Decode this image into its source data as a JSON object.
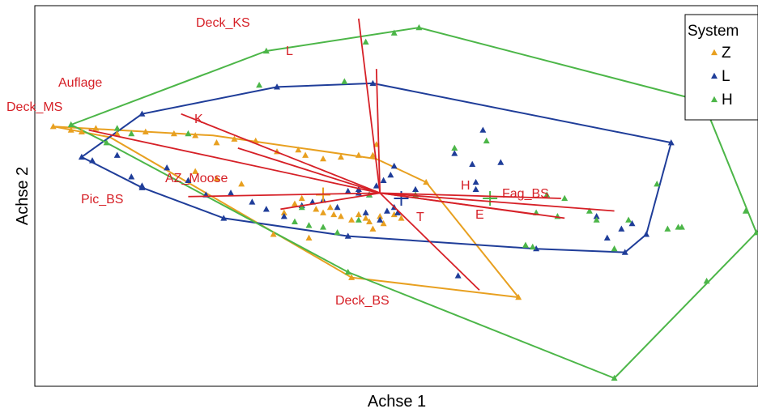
{
  "chart_data": {
    "type": "scatter",
    "subtype": "ordination-biplot",
    "xlabel": "Achse 1",
    "ylabel": "Achse 2",
    "ticks": "none",
    "grid": false,
    "legend": {
      "title": "System",
      "position": "top-right",
      "entries": [
        {
          "label": "Z",
          "color": "#e8a020"
        },
        {
          "label": "L",
          "color": "#1f3d99"
        },
        {
          "label": "H",
          "color": "#4cb648"
        }
      ]
    },
    "xlim": [
      -1.0,
      1.0
    ],
    "ylim": [
      -1.0,
      1.0
    ],
    "series": [
      {
        "name": "Z",
        "color": "#e8a020",
        "marker": "triangle",
        "hull": [
          [
            -0.98,
            0.4
          ],
          [
            -0.53,
            0.35
          ],
          [
            -0.07,
            0.22
          ],
          [
            0.07,
            0.09
          ],
          [
            0.33,
            -0.55
          ],
          [
            -0.14,
            -0.44
          ],
          [
            -0.82,
            0.34
          ]
        ],
        "centroid": [
          -0.22,
          0.02
        ],
        "points": [
          [
            -0.98,
            0.4
          ],
          [
            -0.93,
            0.38
          ],
          [
            -0.9,
            0.37
          ],
          [
            -0.86,
            0.39
          ],
          [
            -0.8,
            0.36
          ],
          [
            -0.72,
            0.37
          ],
          [
            -0.64,
            0.36
          ],
          [
            -0.58,
            0.35
          ],
          [
            -0.52,
            0.31
          ],
          [
            -0.47,
            0.33
          ],
          [
            -0.41,
            0.32
          ],
          [
            -0.35,
            0.26
          ],
          [
            -0.29,
            0.27
          ],
          [
            -0.27,
            0.24
          ],
          [
            -0.22,
            0.22
          ],
          [
            -0.17,
            0.23
          ],
          [
            -0.12,
            0.24
          ],
          [
            -0.08,
            0.24
          ],
          [
            -0.07,
            0.3
          ],
          [
            -0.2,
            -0.05
          ],
          [
            -0.22,
            -0.08
          ],
          [
            -0.19,
            -0.09
          ],
          [
            -0.17,
            -0.1
          ],
          [
            -0.14,
            -0.12
          ],
          [
            -0.12,
            -0.09
          ],
          [
            -0.1,
            -0.11
          ],
          [
            -0.09,
            -0.13
          ],
          [
            -0.06,
            -0.1
          ],
          [
            -0.05,
            -0.14
          ],
          [
            -0.02,
            -0.09
          ],
          [
            0.0,
            -0.11
          ],
          [
            -0.24,
            -0.06
          ],
          [
            -0.28,
            0.0
          ],
          [
            -0.3,
            -0.03
          ],
          [
            -0.33,
            -0.08
          ],
          [
            -0.45,
            0.08
          ],
          [
            -0.52,
            0.11
          ],
          [
            -0.58,
            0.15
          ],
          [
            -0.36,
            -0.2
          ],
          [
            -0.26,
            -0.22
          ],
          [
            -0.08,
            -0.17
          ],
          [
            -0.14,
            -0.44
          ],
          [
            0.33,
            -0.55
          ],
          [
            0.07,
            0.09
          ]
        ]
      },
      {
        "name": "L",
        "color": "#1f3d99",
        "marker": "triangle",
        "hull": [
          [
            -0.9,
            0.23
          ],
          [
            -0.73,
            0.47
          ],
          [
            -0.35,
            0.62
          ],
          [
            -0.08,
            0.64
          ],
          [
            0.76,
            0.31
          ],
          [
            0.69,
            -0.2
          ],
          [
            0.63,
            -0.3
          ],
          [
            0.38,
            -0.28
          ],
          [
            -0.15,
            -0.21
          ],
          [
            -0.5,
            -0.11
          ],
          [
            -0.73,
            0.06
          ]
        ],
        "centroid": [
          0.0,
          0.0
        ],
        "points": [
          [
            -0.9,
            0.23
          ],
          [
            -0.73,
            0.47
          ],
          [
            -0.35,
            0.62
          ],
          [
            -0.08,
            0.64
          ],
          [
            0.76,
            0.31
          ],
          [
            0.69,
            -0.2
          ],
          [
            0.63,
            -0.3
          ],
          [
            0.38,
            -0.28
          ],
          [
            -0.15,
            -0.21
          ],
          [
            -0.5,
            -0.11
          ],
          [
            -0.73,
            0.06
          ],
          [
            -0.87,
            0.21
          ],
          [
            -0.8,
            0.24
          ],
          [
            -0.76,
            0.12
          ],
          [
            -0.73,
            0.07
          ],
          [
            -0.66,
            0.17
          ],
          [
            -0.6,
            0.1
          ],
          [
            -0.55,
            0.02
          ],
          [
            -0.48,
            0.03
          ],
          [
            -0.42,
            -0.02
          ],
          [
            -0.38,
            -0.06
          ],
          [
            -0.33,
            -0.1
          ],
          [
            -0.28,
            -0.04
          ],
          [
            -0.25,
            -0.02
          ],
          [
            -0.22,
            -0.01
          ],
          [
            -0.18,
            -0.05
          ],
          [
            -0.15,
            0.04
          ],
          [
            -0.12,
            0.05
          ],
          [
            -0.09,
            0.02
          ],
          [
            -0.07,
            0.07
          ],
          [
            -0.04,
            -0.07
          ],
          [
            -0.02,
            -0.05
          ],
          [
            -0.05,
            0.1
          ],
          [
            -0.03,
            0.13
          ],
          [
            -0.02,
            0.18
          ],
          [
            -0.06,
            -0.12
          ],
          [
            -0.1,
            -0.08
          ],
          [
            0.04,
            0.05
          ],
          [
            0.15,
            0.25
          ],
          [
            0.2,
            0.19
          ],
          [
            0.21,
            0.09
          ],
          [
            0.21,
            0.05
          ],
          [
            0.23,
            0.38
          ],
          [
            0.28,
            0.2
          ],
          [
            0.55,
            -0.1
          ],
          [
            0.58,
            -0.22
          ],
          [
            0.62,
            -0.17
          ],
          [
            0.65,
            -0.14
          ],
          [
            0.16,
            -0.43
          ],
          [
            -0.01,
            -0.08
          ],
          [
            -0.12,
            0.03
          ]
        ]
      },
      {
        "name": "H",
        "color": "#4cb648",
        "marker": "triangle",
        "hull": [
          [
            -0.93,
            0.41
          ],
          [
            -0.38,
            0.82
          ],
          [
            0.05,
            0.95
          ],
          [
            0.85,
            0.54
          ],
          [
            1.0,
            -0.19
          ],
          [
            0.6,
            -1.0
          ],
          [
            -0.15,
            -0.41
          ],
          [
            -0.83,
            0.31
          ]
        ],
        "centroid": [
          0.25,
          0.0
        ],
        "points": [
          [
            -0.93,
            0.41
          ],
          [
            -0.38,
            0.82
          ],
          [
            0.05,
            0.95
          ],
          [
            0.85,
            0.54
          ],
          [
            1.0,
            -0.19
          ],
          [
            0.6,
            -1.0
          ],
          [
            -0.15,
            -0.41
          ],
          [
            -0.83,
            0.31
          ],
          [
            -0.8,
            0.39
          ],
          [
            -0.76,
            0.36
          ],
          [
            -0.6,
            0.36
          ],
          [
            -0.4,
            0.63
          ],
          [
            -0.16,
            0.65
          ],
          [
            -0.1,
            0.87
          ],
          [
            -0.02,
            0.92
          ],
          [
            0.15,
            0.28
          ],
          [
            0.24,
            0.32
          ],
          [
            0.41,
            0.02
          ],
          [
            0.46,
            0.0
          ],
          [
            0.38,
            -0.08
          ],
          [
            0.35,
            -0.26
          ],
          [
            0.37,
            -0.27
          ],
          [
            0.53,
            -0.07
          ],
          [
            0.55,
            -0.12
          ],
          [
            0.6,
            -0.28
          ],
          [
            0.64,
            -0.12
          ],
          [
            0.72,
            0.08
          ],
          [
            0.75,
            -0.17
          ],
          [
            0.78,
            -0.16
          ],
          [
            0.79,
            -0.16
          ],
          [
            0.97,
            -0.07
          ],
          [
            0.86,
            -0.46
          ],
          [
            -0.28,
            -0.05
          ],
          [
            -0.26,
            -0.15
          ],
          [
            -0.22,
            -0.16
          ],
          [
            -0.12,
            -0.12
          ],
          [
            -0.3,
            -0.13
          ],
          [
            -0.18,
            -0.19
          ],
          [
            -0.09,
            0.02
          ],
          [
            0.04,
            0.02
          ],
          [
            0.44,
            -0.1
          ]
        ]
      }
    ],
    "vectors": [
      {
        "label": "Deck_KS",
        "from": [
          -0.06,
          0.03
        ],
        "to": [
          -0.12,
          1.0
        ]
      },
      {
        "label": "L",
        "from": [
          -0.06,
          0.03
        ],
        "to": [
          -0.07,
          0.72
        ]
      },
      {
        "label": "Auflage",
        "from": [
          -0.06,
          0.03
        ],
        "to": [
          -0.62,
          0.47
        ]
      },
      {
        "label": "Deck_MS",
        "from": [
          -0.06,
          0.03
        ],
        "to": [
          -0.88,
          0.38
        ]
      },
      {
        "label": "K",
        "from": [
          -0.06,
          0.03
        ],
        "to": [
          -0.46,
          0.28
        ]
      },
      {
        "label": "AZ_Moose",
        "from": [
          -0.06,
          0.03
        ],
        "to": [
          -0.34,
          -0.06
        ]
      },
      {
        "label": "Pic_BS",
        "from": [
          -0.06,
          0.03
        ],
        "to": [
          -0.6,
          0.01
        ]
      },
      {
        "label": "H",
        "from": [
          -0.06,
          0.03
        ],
        "to": [
          0.45,
          0.0
        ]
      },
      {
        "label": "Fag_BS",
        "from": [
          -0.06,
          0.03
        ],
        "to": [
          0.6,
          -0.07
        ]
      },
      {
        "label": "T",
        "from": [
          -0.06,
          0.03
        ],
        "to": [
          0.38,
          -0.09
        ]
      },
      {
        "label": "E",
        "from": [
          -0.06,
          0.03
        ],
        "to": [
          0.46,
          -0.11
        ]
      },
      {
        "label": "Deck_BS",
        "from": [
          -0.06,
          0.03
        ],
        "to": [
          0.22,
          -0.51
        ]
      }
    ]
  }
}
